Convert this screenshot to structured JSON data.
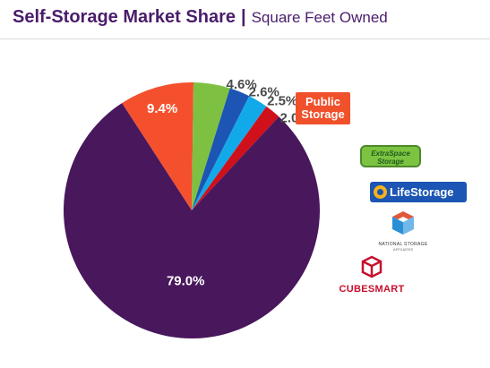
{
  "header": {
    "title": "Self-Storage Market Share",
    "divider": "|",
    "subtitle": "Square Feet Owned"
  },
  "chart_data": {
    "type": "pie",
    "title": "Self-Storage Market Share",
    "subtitle": "Square Feet Owned",
    "unit": "%",
    "slices": [
      {
        "company": "Public Storage",
        "value": 9.4,
        "label": "9.4%",
        "color": "#f5502d"
      },
      {
        "company": "Extra Space Storage",
        "value": 4.6,
        "label": "4.6%",
        "color": "#7ec142"
      },
      {
        "company": "Life Storage",
        "value": 2.6,
        "label": "2.6%",
        "color": "#1c55b3"
      },
      {
        "company": "National Storage Affiliates",
        "value": 2.5,
        "label": "2.5%",
        "color": "#12a9ea"
      },
      {
        "company": "CubeSmart",
        "value": 2.0,
        "label": "2.0%",
        "color": "#d0101a"
      },
      {
        "company": "",
        "value": 79.0,
        "label": "79.0%",
        "color": "#48175c"
      }
    ]
  },
  "logos": {
    "public_storage": {
      "line1": "Public",
      "line2": "Storage",
      "icon": "public-storage-logo"
    },
    "extra_space": {
      "line1": "ExtraSpace",
      "line2": "Storage",
      "icon": "extra-space-logo"
    },
    "life_storage": {
      "text": "LifeStorage",
      "icon": "life-storage-logo"
    },
    "national_storage": {
      "text": "NATIONAL STORAGE",
      "sub": "AFFILIATES",
      "icon": "national-storage-logo"
    },
    "cubesmart": {
      "text": "CUBESMART",
      "icon": "cubesmart-logo"
    }
  }
}
